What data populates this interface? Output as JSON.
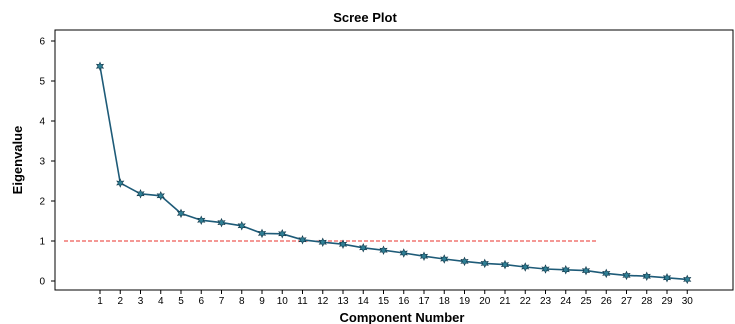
{
  "chart_data": {
    "type": "line",
    "title": "Scree Plot",
    "xlabel": "Component Number",
    "ylabel": "Eigenvalue",
    "x": [
      1,
      2,
      3,
      4,
      5,
      6,
      7,
      8,
      9,
      10,
      11,
      12,
      13,
      14,
      15,
      16,
      17,
      18,
      19,
      20,
      21,
      22,
      23,
      24,
      25,
      26,
      27,
      28,
      29,
      30
    ],
    "values": [
      5.37,
      2.45,
      2.18,
      2.13,
      1.69,
      1.52,
      1.46,
      1.38,
      1.19,
      1.18,
      1.03,
      0.97,
      0.92,
      0.83,
      0.77,
      0.7,
      0.62,
      0.55,
      0.49,
      0.44,
      0.41,
      0.35,
      0.3,
      0.28,
      0.26,
      0.19,
      0.14,
      0.12,
      0.08,
      0.04
    ],
    "yticks": [
      0,
      1,
      2,
      3,
      4,
      5,
      6
    ],
    "ylim": [
      -0.25,
      6.35
    ],
    "reference_line": {
      "y": 1,
      "x_start": 0,
      "x_end": 25.5,
      "color": "#e8322b",
      "style": "dashed"
    },
    "line_color": "#1e5b78",
    "marker_color": "#2f7f95",
    "grid": false
  }
}
